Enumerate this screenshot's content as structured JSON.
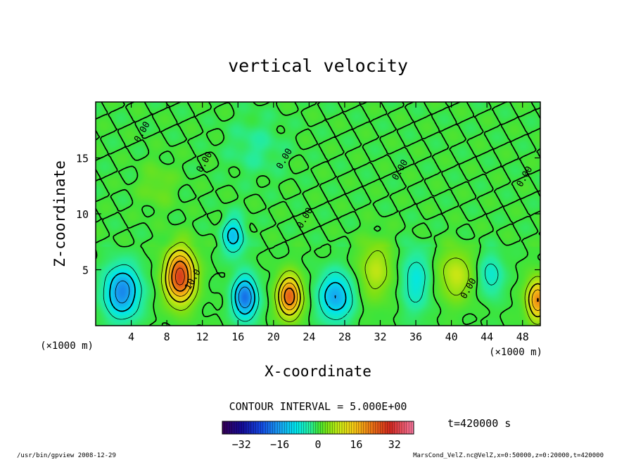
{
  "chart_data": {
    "type": "heatmap",
    "title": "vertical velocity",
    "xlabel": "X-coordinate",
    "ylabel": "Z-coordinate",
    "x_unit_label": "(×1000 m)",
    "z_unit_label": "(×1000 m)",
    "xlim": [
      0,
      50
    ],
    "ylim": [
      0,
      20
    ],
    "x_ticks": [
      4,
      8,
      12,
      16,
      20,
      24,
      28,
      32,
      36,
      40,
      44,
      48
    ],
    "y_ticks": [
      5,
      10,
      15
    ],
    "contour_interval_text": "CONTOUR INTERVAL = 5.000E+00",
    "time_text": "t=420000 s",
    "colorbar": {
      "range": [
        -40,
        40
      ],
      "ticks": [
        -32,
        -16,
        0,
        16,
        32
      ]
    },
    "contour_labels": [
      {
        "text": "0.00",
        "x": 5.5,
        "z": 17.2
      },
      {
        "text": "0.00",
        "x": 12.5,
        "z": 14.5
      },
      {
        "text": "0.00",
        "x": 21.5,
        "z": 14.8
      },
      {
        "text": "0.00",
        "x": 34.5,
        "z": 13.8
      },
      {
        "text": "0.00",
        "x": 23.8,
        "z": 9.5
      },
      {
        "text": "10.0",
        "x": 11.2,
        "z": 4.0
      },
      {
        "text": "0.00",
        "x": 42.2,
        "z": 3.2
      },
      {
        "text": "0.00",
        "x": 48.5,
        "z": 13.2
      }
    ],
    "cells": [
      {
        "name": "updraft",
        "x": 9.5,
        "z": 4.4,
        "peak": 28,
        "sx": 1.6,
        "sz": 2.3
      },
      {
        "name": "downdraft",
        "x": 3.0,
        "z": 3.0,
        "peak": -18,
        "sx": 1.9,
        "sz": 2.2
      },
      {
        "name": "downdraft",
        "x": 15.5,
        "z": 8.0,
        "peak": -12,
        "sx": 1.2,
        "sz": 1.6
      },
      {
        "name": "downdraft",
        "x": 16.8,
        "z": 2.5,
        "peak": -20,
        "sx": 1.3,
        "sz": 1.8
      },
      {
        "name": "updraft",
        "x": 21.8,
        "z": 2.6,
        "peak": 24,
        "sx": 1.3,
        "sz": 1.8
      },
      {
        "name": "downdraft",
        "x": 27.0,
        "z": 2.6,
        "peak": -15,
        "sx": 1.8,
        "sz": 2.0
      },
      {
        "name": "updraft",
        "x": 31.5,
        "z": 5.0,
        "peak": 8,
        "sx": 1.8,
        "sz": 2.5
      },
      {
        "name": "downdraft",
        "x": 36.0,
        "z": 4.0,
        "peak": -8,
        "sx": 1.5,
        "sz": 2.6
      },
      {
        "name": "updraft",
        "x": 40.5,
        "z": 4.5,
        "peak": 9,
        "sx": 1.8,
        "sz": 2.2
      },
      {
        "name": "downdraft",
        "x": 44.5,
        "z": 4.5,
        "peak": -7,
        "sx": 1.3,
        "sz": 1.8
      },
      {
        "name": "updraft",
        "x": 49.7,
        "z": 2.3,
        "peak": 20,
        "sx": 1.2,
        "sz": 1.8
      },
      {
        "name": "updraft",
        "x": 7.0,
        "z": 12.5,
        "peak": 3,
        "sx": 2.0,
        "sz": 2.0
      },
      {
        "name": "downdraft",
        "x": 18.0,
        "z": 16.0,
        "peak": -3,
        "sx": 3.0,
        "sz": 2.5
      }
    ]
  },
  "footer": {
    "left": "/usr/bin/gpview  2008-12-29",
    "right": "MarsCond_VelZ.nc@VelZ,x=0:50000,z=0:20000,t=420000"
  }
}
